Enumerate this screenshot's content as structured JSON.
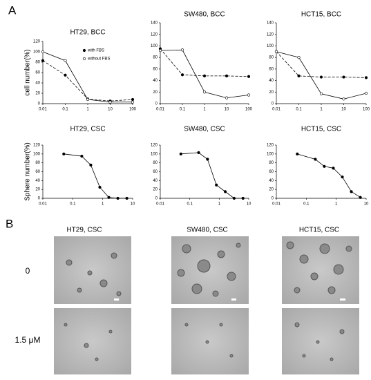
{
  "panel_a": {
    "label": "A"
  },
  "chart_data": [
    {
      "type": "line",
      "title": "HT29, BCC",
      "y_label": "cell number(%)",
      "log_x": true,
      "x": [
        0.01,
        0.1,
        1,
        10,
        100
      ],
      "xlim": [
        0.01,
        100
      ],
      "xticks": [
        0.01,
        0.1,
        1,
        10,
        100
      ],
      "ylim": [
        0,
        120
      ],
      "yticks": [
        0,
        20,
        40,
        60,
        80,
        100,
        120
      ],
      "series": [
        {
          "name": "with FBS",
          "color": "#000000",
          "marker": "filled",
          "dash": true,
          "values": [
            83,
            55,
            9,
            5,
            8
          ]
        },
        {
          "name": "without FBS",
          "color": "#000000",
          "marker": "open",
          "dash": false,
          "values": [
            100,
            83,
            8,
            3,
            3
          ]
        }
      ]
    },
    {
      "type": "line",
      "title": "SW480, BCC",
      "log_x": true,
      "x": [
        0.01,
        0.1,
        1,
        10,
        100
      ],
      "xlim": [
        0.01,
        100
      ],
      "xticks": [
        0.01,
        0.1,
        1,
        10,
        100
      ],
      "ylim": [
        0,
        140
      ],
      "yticks": [
        0,
        20,
        40,
        60,
        80,
        100,
        120,
        140
      ],
      "series": [
        {
          "color": "#000000",
          "marker": "filled",
          "dash": true,
          "values": [
            95,
            50,
            48,
            48,
            47
          ]
        },
        {
          "color": "#000000",
          "marker": "open",
          "dash": false,
          "values": [
            92,
            93,
            20,
            10,
            15
          ]
        }
      ]
    },
    {
      "type": "line",
      "title": "HCT15, BCC",
      "log_x": true,
      "x": [
        0.01,
        0.1,
        1,
        10,
        100
      ],
      "xlim": [
        0.01,
        100
      ],
      "xticks": [
        0.01,
        0.1,
        1,
        10,
        100
      ],
      "ylim": [
        0,
        140
      ],
      "yticks": [
        0,
        20,
        40,
        60,
        80,
        100,
        120,
        140
      ],
      "series": [
        {
          "color": "#000000",
          "marker": "filled",
          "dash": true,
          "values": [
            90,
            48,
            46,
            46,
            45
          ]
        },
        {
          "color": "#000000",
          "marker": "open",
          "dash": false,
          "values": [
            90,
            80,
            17,
            8,
            18
          ]
        }
      ]
    },
    {
      "type": "line",
      "title": "HT29, CSC",
      "y_label": "Sphere number(%)",
      "log_x": true,
      "x": [
        0.05,
        0.2,
        0.4,
        0.8,
        1.6,
        3.2,
        6.4
      ],
      "xlim": [
        0.01,
        10
      ],
      "xticks": [
        0.01,
        0.1,
        1,
        10
      ],
      "ylim": [
        0,
        120
      ],
      "yticks": [
        0,
        20,
        40,
        60,
        80,
        100,
        120
      ],
      "series": [
        {
          "color": "#000000",
          "marker": "filled",
          "dash": false,
          "values": [
            100,
            95,
            75,
            25,
            2,
            0,
            0
          ]
        }
      ]
    },
    {
      "type": "line",
      "title": "SW480, CSC",
      "log_x": true,
      "x": [
        0.05,
        0.2,
        0.4,
        0.8,
        1.6,
        3.2,
        6.4
      ],
      "xlim": [
        0.01,
        10
      ],
      "xticks": [
        0.01,
        0.1,
        1,
        10
      ],
      "ylim": [
        0,
        120
      ],
      "yticks": [
        0,
        20,
        40,
        60,
        80,
        100,
        120
      ],
      "series": [
        {
          "color": "#000000",
          "marker": "filled",
          "dash": false,
          "values": [
            100,
            103,
            88,
            30,
            15,
            0,
            0
          ]
        }
      ]
    },
    {
      "type": "line",
      "title": "HCT15, CSC",
      "log_x": true,
      "x": [
        0.05,
        0.2,
        0.4,
        0.8,
        1.6,
        3.2,
        6.4
      ],
      "xlim": [
        0.01,
        10
      ],
      "xticks": [
        0.01,
        0.1,
        1,
        10
      ],
      "ylim": [
        0,
        120
      ],
      "yticks": [
        0,
        20,
        40,
        60,
        80,
        100,
        120
      ],
      "series": [
        {
          "color": "#000000",
          "marker": "filled",
          "dash": false,
          "values": [
            100,
            88,
            72,
            68,
            48,
            15,
            2
          ]
        }
      ]
    }
  ],
  "panel_b": {
    "label": "B",
    "columns": [
      "HT29, CSC",
      "SW480, CSC",
      "HCT15, CSC"
    ],
    "rows": [
      "0",
      "1.5 μM"
    ]
  }
}
